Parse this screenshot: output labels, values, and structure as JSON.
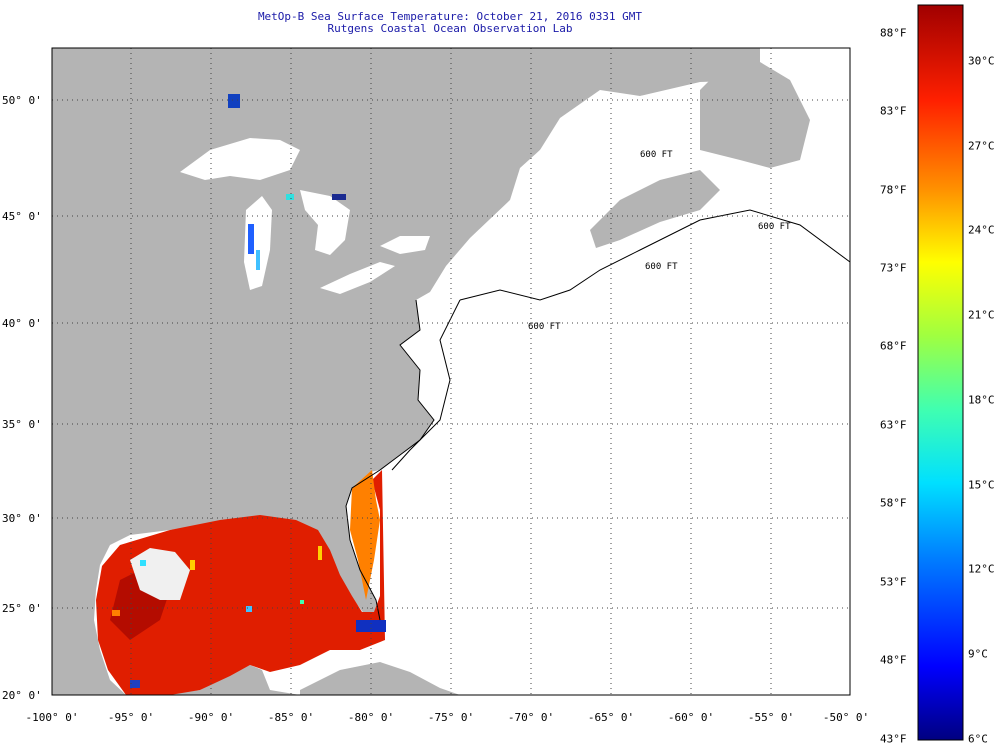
{
  "title": "MetOp-B Sea Surface Temperature:  October 21, 2016 0331 GMT",
  "subtitle": "Rutgens Coastal Ocean Observation Lab",
  "lat_labels": [
    "50° 0'",
    "45° 0'",
    "40° 0'",
    "35° 0'",
    "30° 0'",
    "25° 0'",
    "20° 0'"
  ],
  "lon_labels": [
    "-100° 0'",
    "-95° 0'",
    "-90° 0'",
    "-85° 0'",
    "-80° 0'",
    "-75° 0'",
    "-70° 0'",
    "-65° 0'",
    "-60° 0'",
    "-55° 0'",
    "-50° 0'"
  ],
  "colorbar": {
    "fahrenheit": [
      "88°F",
      "83°F",
      "78°F",
      "73°F",
      "68°F",
      "63°F",
      "58°F",
      "53°F",
      "48°F",
      "43°F"
    ],
    "celsius": [
      "30°C",
      "27°C",
      "24°C",
      "21°C",
      "18°C",
      "15°C",
      "12°C",
      "9°C",
      "6°C"
    ]
  },
  "depth_labels": [
    "600 FT",
    "600 FT",
    "600 FT",
    "600 FT"
  ],
  "colors": {
    "land": "#b4b4b4",
    "water": "#ffffff",
    "title": "#1a1aa8",
    "sst_warm": "#e02000",
    "sst_hot": "#b40c00",
    "sst_orange": "#ff8000"
  }
}
